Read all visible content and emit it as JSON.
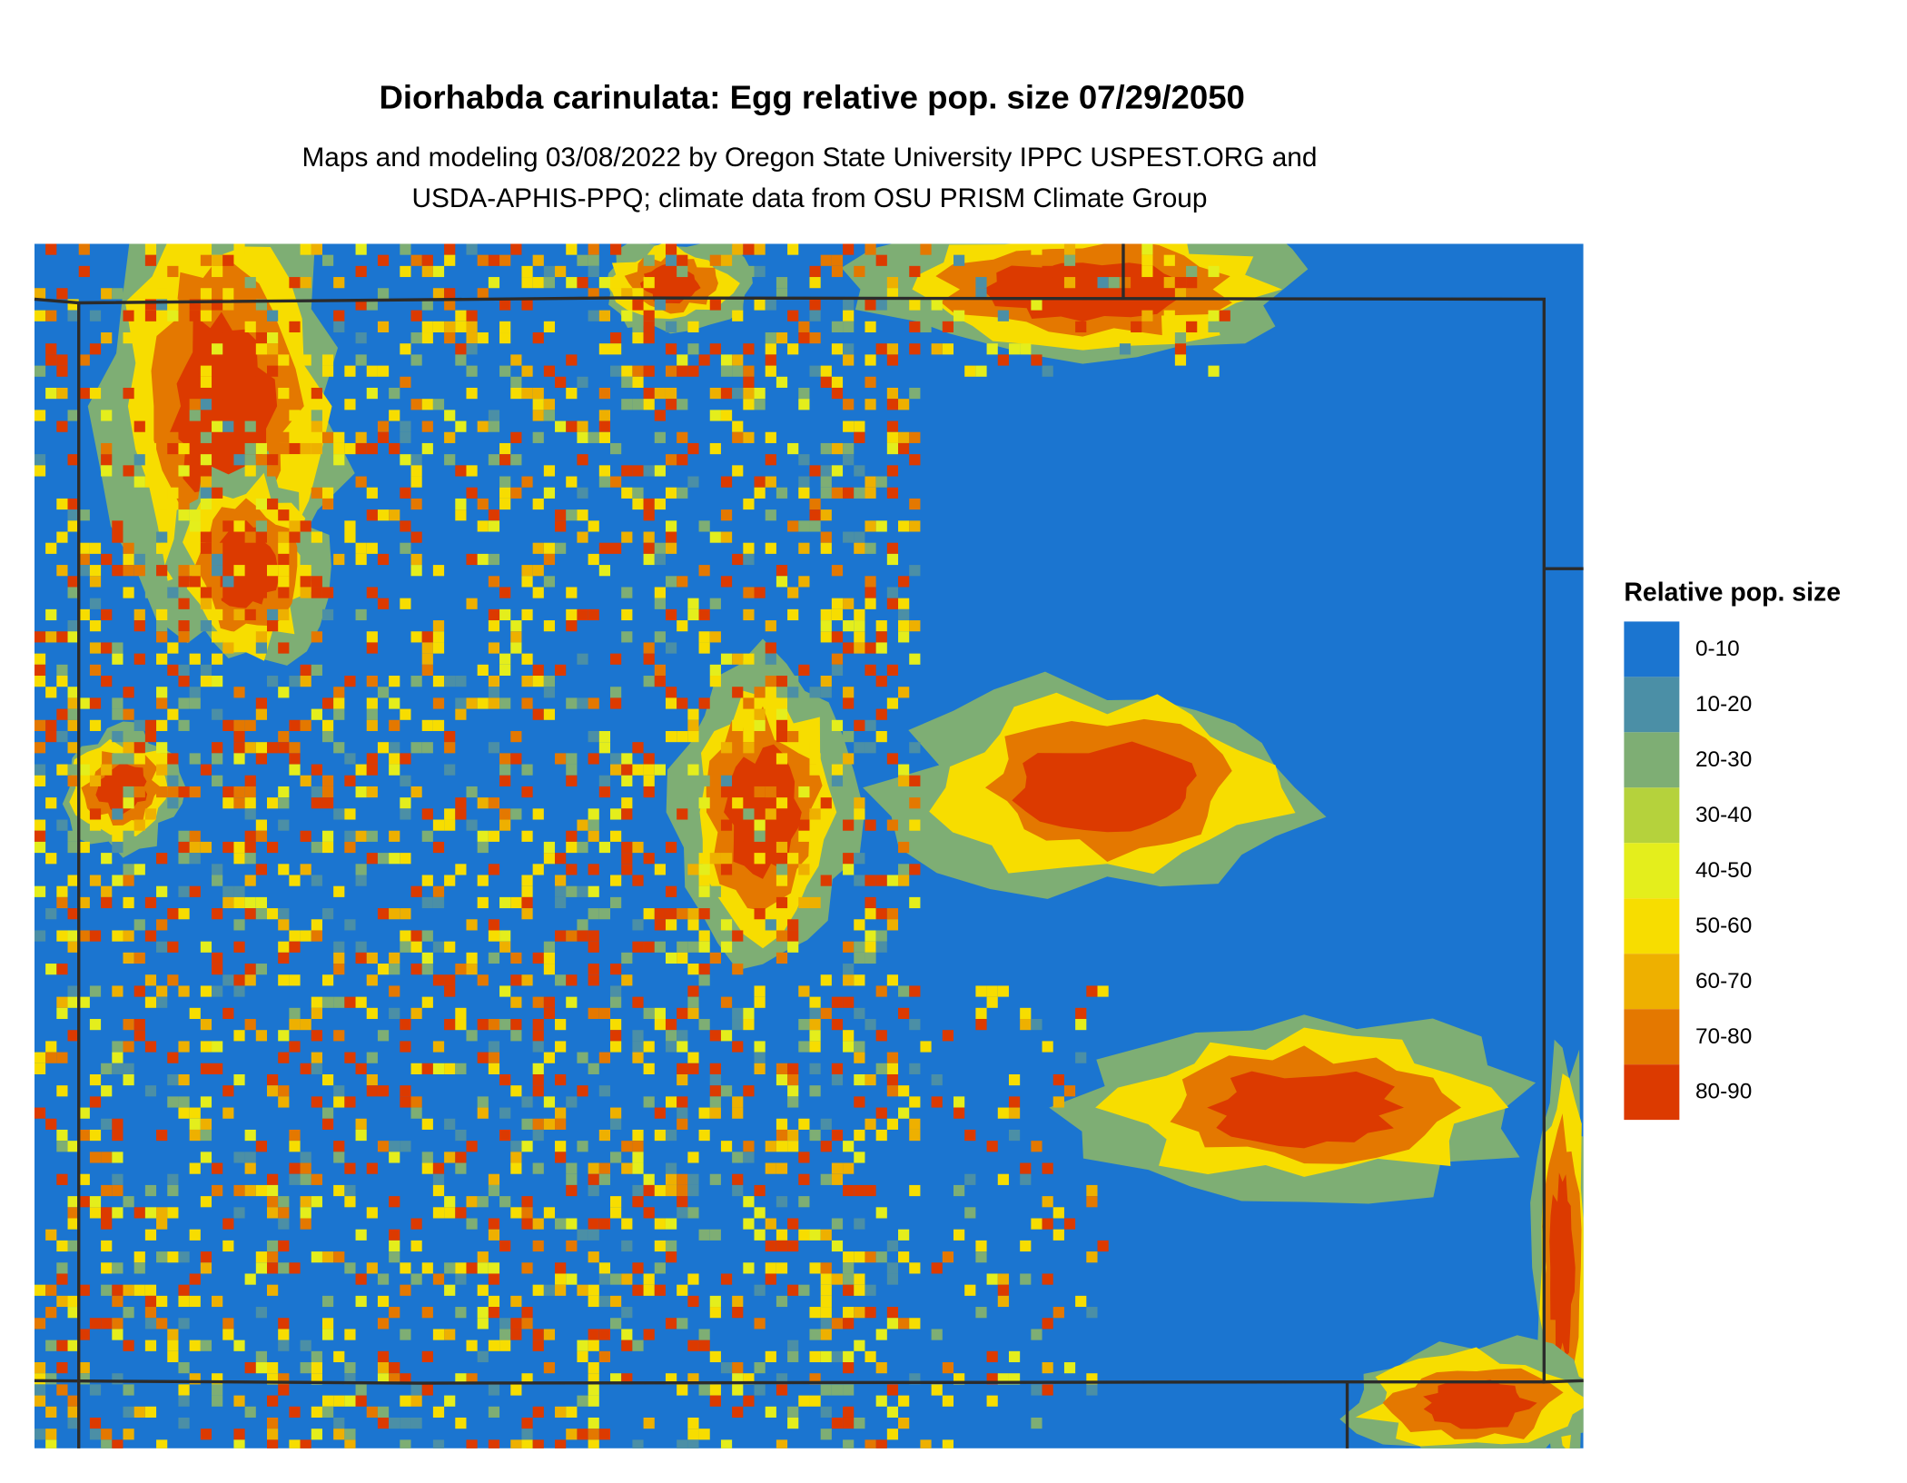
{
  "title": "Diorhabda carinulata: Egg relative pop. size 07/29/2050",
  "subtitle": [
    "Maps and modeling 03/08/2022 by Oregon State University IPPC USPEST.ORG and",
    "USDA-APHIS-PPQ; climate data from OSU PRISM Climate Group"
  ],
  "legend": {
    "title": "Relative pop. size",
    "items": [
      {
        "label": "0-10",
        "color": "#1b75d0"
      },
      {
        "label": "10-20",
        "color": "#4b8fa6"
      },
      {
        "label": "20-30",
        "color": "#7eae74"
      },
      {
        "label": "30-40",
        "color": "#b5d23c"
      },
      {
        "label": "40-50",
        "color": "#e4ee1c"
      },
      {
        "label": "50-60",
        "color": "#f7dd00"
      },
      {
        "label": "60-70",
        "color": "#eeb000"
      },
      {
        "label": "70-80",
        "color": "#e47800"
      },
      {
        "label": "80-90",
        "color": "#dc3a00"
      }
    ]
  }
}
